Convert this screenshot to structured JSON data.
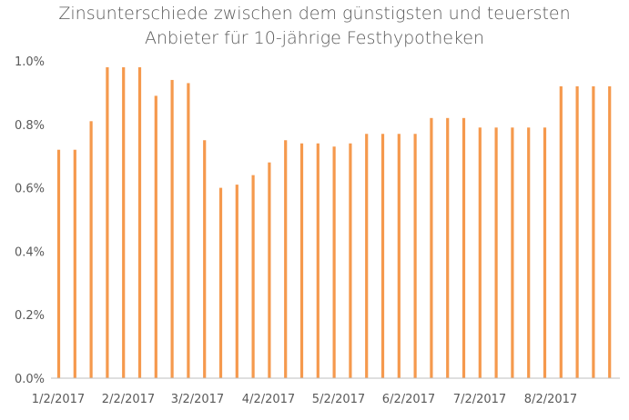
{
  "chart_data": {
    "type": "bar",
    "title": "Zinsunterschiede zwischen dem günstigsten und teuersten",
    "subtitle": "Anbieter für 10-jährige Festhypotheken",
    "xlabel": "",
    "ylabel": "",
    "ylim": [
      0,
      1.0
    ],
    "ytick_values": [
      0,
      0.2,
      0.4,
      0.6,
      0.8,
      1.0
    ],
    "ytick_labels": [
      "0.0%",
      "0.2%",
      "0.4%",
      "0.6%",
      "0.8%",
      "1.0%"
    ],
    "xtick_labels": [
      "1/2/2017",
      "2/2/2017",
      "3/2/2017",
      "4/2/2017",
      "5/2/2017",
      "6/2/2017",
      "7/2/2017",
      "8/2/2017"
    ],
    "grid": false,
    "bar_color": "#f5994d",
    "values": [
      0.72,
      0.72,
      0.81,
      0.98,
      0.98,
      0.98,
      0.89,
      0.94,
      0.93,
      0.75,
      0.6,
      0.61,
      0.64,
      0.68,
      0.75,
      0.74,
      0.74,
      0.73,
      0.74,
      0.77,
      0.77,
      0.77,
      0.77,
      0.82,
      0.82,
      0.82,
      0.79,
      0.79,
      0.79,
      0.79,
      0.79,
      0.92,
      0.92,
      0.92,
      0.92
    ]
  }
}
